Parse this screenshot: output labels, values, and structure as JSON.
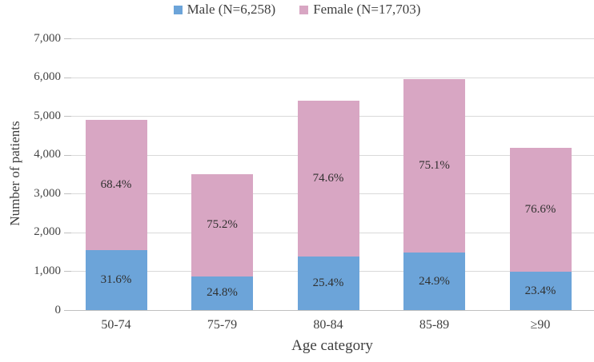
{
  "legend": {
    "items": [
      {
        "label": "Male (N=6,258)",
        "color": "#6ca4d9"
      },
      {
        "label": "Female (N=17,703)",
        "color": "#d8a6c3"
      }
    ]
  },
  "chart_data": {
    "type": "bar",
    "stacked": true,
    "categories": [
      "50-74",
      "75-79",
      "80-84",
      "85-89",
      "≥90"
    ],
    "series": [
      {
        "name": "Male (N=6,258)",
        "color": "#6ca4d9",
        "values": [
          1550,
          870,
          1370,
          1480,
          980
        ],
        "labels": [
          "31.6%",
          "24.8%",
          "25.4%",
          "24.9%",
          "23.4%"
        ]
      },
      {
        "name": "Female (N=17,703)",
        "color": "#d8a6c3",
        "values": [
          3350,
          2630,
          4030,
          4470,
          3210
        ],
        "labels": [
          "68.4%",
          "75.2%",
          "74.6%",
          "75.1%",
          "76.6%"
        ]
      }
    ],
    "totals": [
      4900,
      3500,
      5400,
      5950,
      4190
    ],
    "title": "",
    "xlabel": "Age category",
    "ylabel": "Number of patients",
    "ylim": [
      0,
      7000
    ],
    "ytick_interval": 1000,
    "yticks": [
      "0",
      "1,000",
      "2,000",
      "3,000",
      "4,000",
      "5,000",
      "6,000",
      "7,000"
    ],
    "grid": true,
    "legend_position": "top-center"
  },
  "colors": {
    "male": "#6ca4d9",
    "female": "#d8a6c3",
    "gridline": "#d9d9d9",
    "axis_line": "#bfbfbf",
    "text": "#3f3f3f"
  }
}
